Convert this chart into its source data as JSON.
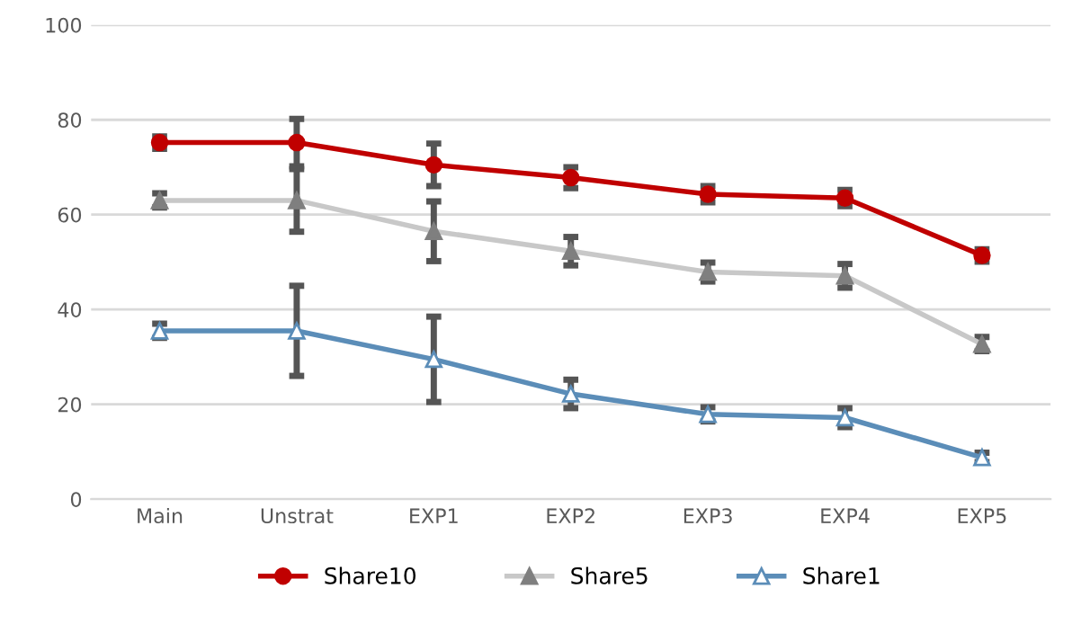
{
  "chart_data": {
    "type": "line",
    "categories": [
      "Main",
      "Unstrat",
      "EXP1",
      "EXP2",
      "EXP3",
      "EXP4",
      "EXP5"
    ],
    "ylim": [
      0,
      100
    ],
    "yticks": [
      0,
      20,
      40,
      60,
      80,
      100
    ],
    "grid": "y",
    "legend": "bottom",
    "series": [
      {
        "name": "Share10",
        "color": "#c00000",
        "marker": "circle",
        "values": [
          75.2,
          75.2,
          70.5,
          67.8,
          64.3,
          63.5,
          51.4
        ],
        "errors": [
          1.3,
          5,
          4.5,
          2.2,
          1.7,
          1.7,
          1.3
        ]
      },
      {
        "name": "Share5",
        "color": "#c8c8c8",
        "marker": "triangle",
        "values": [
          63,
          63,
          56.5,
          52.3,
          47.9,
          47.1,
          32.7
        ],
        "errors": [
          1.5,
          6.6,
          6.3,
          3,
          2,
          2.5,
          1.5
        ]
      },
      {
        "name": "Share1",
        "color": "#5b8db8",
        "marker": "triangle",
        "values": [
          35.5,
          35.5,
          29.5,
          22.2,
          17.9,
          17.2,
          8.8
        ],
        "errors": [
          1.5,
          9.5,
          9,
          3,
          1.5,
          2,
          1
        ]
      }
    ]
  }
}
